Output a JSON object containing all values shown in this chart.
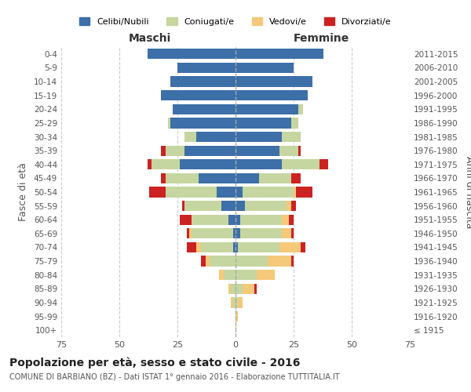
{
  "age_groups": [
    "100+",
    "95-99",
    "90-94",
    "85-89",
    "80-84",
    "75-79",
    "70-74",
    "65-69",
    "60-64",
    "55-59",
    "50-54",
    "45-49",
    "40-44",
    "35-39",
    "30-34",
    "25-29",
    "20-24",
    "15-19",
    "10-14",
    "5-9",
    "0-4"
  ],
  "birth_years": [
    "≤ 1915",
    "1916-1920",
    "1921-1925",
    "1926-1930",
    "1931-1935",
    "1936-1940",
    "1941-1945",
    "1946-1950",
    "1951-1955",
    "1956-1960",
    "1961-1965",
    "1966-1970",
    "1971-1975",
    "1976-1980",
    "1981-1985",
    "1986-1990",
    "1991-1995",
    "1996-2000",
    "2001-2005",
    "2006-2010",
    "2011-2015"
  ],
  "maschi": {
    "celibi": [
      0,
      0,
      0,
      0,
      0,
      0,
      1,
      1,
      3,
      6,
      8,
      16,
      24,
      22,
      17,
      28,
      27,
      32,
      28,
      25,
      38
    ],
    "coniugati": [
      0,
      0,
      1,
      2,
      5,
      11,
      14,
      18,
      16,
      16,
      22,
      14,
      12,
      8,
      5,
      1,
      0,
      0,
      0,
      0,
      0
    ],
    "vedovi": [
      0,
      0,
      1,
      1,
      2,
      2,
      2,
      1,
      0,
      0,
      0,
      0,
      0,
      0,
      0,
      0,
      0,
      0,
      0,
      0,
      0
    ],
    "divorziati": [
      0,
      0,
      0,
      0,
      0,
      2,
      4,
      1,
      5,
      1,
      7,
      2,
      2,
      2,
      0,
      0,
      0,
      0,
      0,
      0,
      0
    ]
  },
  "femmine": {
    "nubili": [
      0,
      0,
      0,
      0,
      0,
      0,
      1,
      2,
      2,
      4,
      3,
      10,
      20,
      19,
      20,
      24,
      27,
      31,
      33,
      25,
      38
    ],
    "coniugate": [
      0,
      0,
      1,
      3,
      9,
      14,
      18,
      18,
      18,
      18,
      22,
      14,
      16,
      8,
      8,
      3,
      2,
      0,
      0,
      0,
      0
    ],
    "vedove": [
      0,
      1,
      2,
      5,
      8,
      10,
      9,
      4,
      3,
      2,
      1,
      0,
      0,
      0,
      0,
      0,
      0,
      0,
      0,
      0,
      0
    ],
    "divorziate": [
      0,
      0,
      0,
      1,
      0,
      1,
      2,
      1,
      2,
      2,
      7,
      4,
      4,
      1,
      0,
      0,
      0,
      0,
      0,
      0,
      0
    ]
  },
  "colors": {
    "celibi": "#3d6fa8",
    "coniugati": "#c5d6a0",
    "vedovi": "#f5c97a",
    "divorziati": "#cc2222"
  },
  "xlim": 75,
  "title": "Popolazione per età, sesso e stato civile - 2016",
  "subtitle": "COMUNE DI BARBIANO (BZ) - Dati ISTAT 1° gennaio 2016 - Elaborazione TUTTITALIA.IT",
  "ylabel_left": "Fasce di età",
  "ylabel_right": "Anni di nascita",
  "xlabel_left": "Maschi",
  "xlabel_right": "Femmine",
  "legend_labels": [
    "Celibi/Nubili",
    "Coniugati/e",
    "Vedovi/e",
    "Divorziati/e"
  ],
  "background_color": "#ffffff",
  "grid_color": "#cccccc"
}
